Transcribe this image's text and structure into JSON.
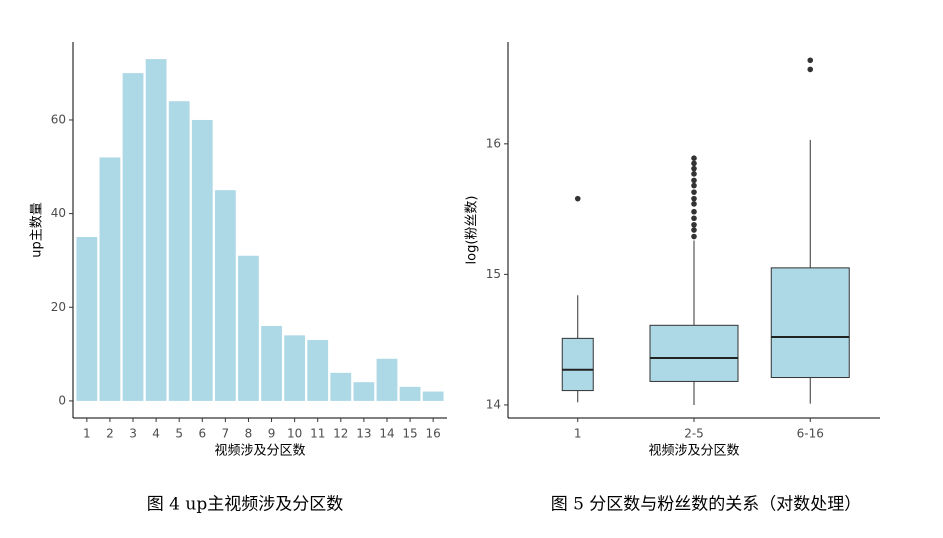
{
  "chart_data": [
    {
      "type": "bar",
      "x_label": "视频涉及分区数",
      "y_label": "up主数量",
      "caption": "图 4 up主视频涉及分区数",
      "categories": [
        "1",
        "2",
        "3",
        "4",
        "5",
        "6",
        "7",
        "8",
        "9",
        "10",
        "11",
        "12",
        "13",
        "14",
        "15",
        "16"
      ],
      "values": [
        35,
        52,
        70,
        73,
        64,
        60,
        45,
        31,
        16,
        14,
        13,
        6,
        4,
        9,
        3,
        2
      ],
      "color": "#add8e6",
      "ylim": [
        -3.65,
        76.65
      ],
      "yticks": [
        0,
        20,
        40,
        60
      ],
      "grid": false
    },
    {
      "type": "box",
      "x_label": "视频涉及分区数",
      "y_label": "log(粉丝数)",
      "caption": "图 5 分区数与粉丝数的关系（对数处理）",
      "categories": [
        "1",
        "2-5",
        "6-16"
      ],
      "boxes": [
        {
          "low": 14.02,
          "q1": 14.11,
          "median": 14.27,
          "q3": 14.51,
          "high": 14.84,
          "outliers": [
            15.58
          ]
        },
        {
          "low": 14.0,
          "q1": 14.18,
          "median": 14.36,
          "q3": 14.61,
          "high": 15.26,
          "outliers": [
            15.29,
            15.34,
            15.38,
            15.43,
            15.48,
            15.54,
            15.58,
            15.63,
            15.68,
            15.72,
            15.77,
            15.81,
            15.85,
            15.89
          ]
        },
        {
          "low": 14.01,
          "q1": 14.21,
          "median": 14.52,
          "q3": 15.05,
          "high": 16.03,
          "outliers": [
            16.57,
            16.64
          ]
        }
      ],
      "color": "#add8e6",
      "ylim": [
        13.9,
        16.78
      ],
      "yticks": [
        14,
        15,
        16
      ],
      "grid": false
    }
  ]
}
